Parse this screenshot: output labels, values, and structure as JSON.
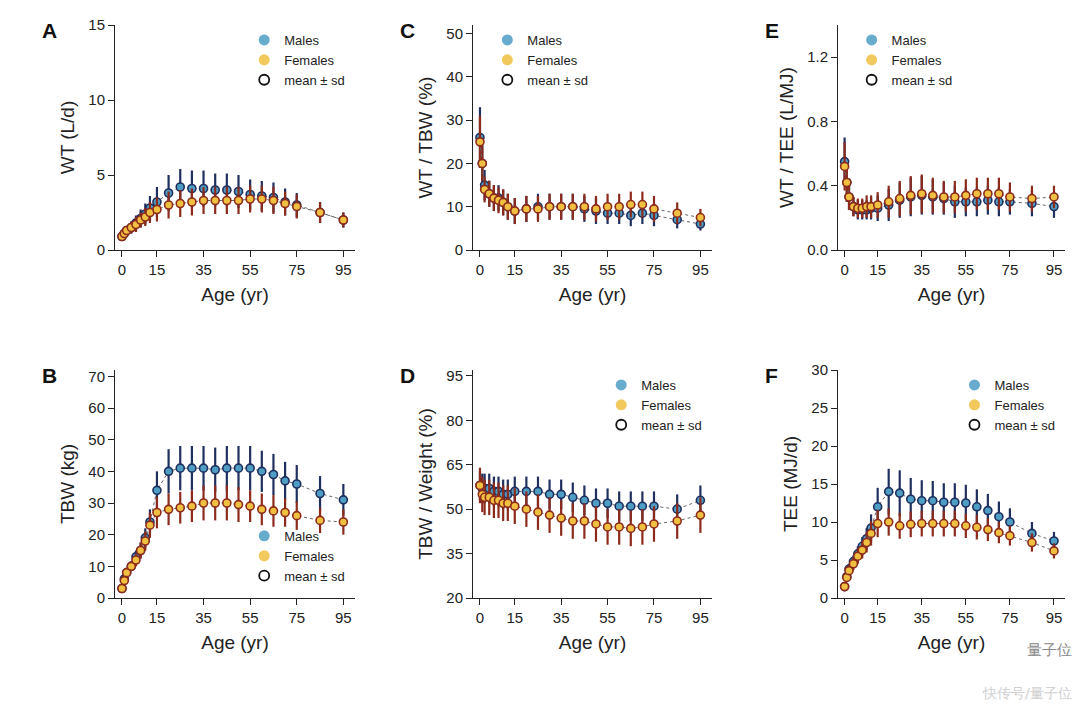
{
  "chart_data": [
    {
      "panel": "A",
      "type": "scatter",
      "x_label": "Age (yr)",
      "y_label": "WT (L/d)",
      "legend": "top right",
      "mean_label": "mean ± sd",
      "xlim": [
        -3,
        100
      ],
      "xticks": [
        0,
        15,
        35,
        55,
        75,
        95
      ],
      "ylim": [
        0,
        15
      ],
      "yticks": [
        0,
        5,
        10,
        15
      ],
      "x": [
        0,
        1,
        2,
        4,
        6,
        8,
        10,
        12,
        15,
        20,
        25,
        30,
        35,
        40,
        45,
        50,
        55,
        60,
        65,
        70,
        75,
        85,
        95
      ],
      "series": [
        {
          "name": "Males",
          "color": "#4e9ec4",
          "values": [
            0.9,
            1.1,
            1.3,
            1.5,
            1.8,
            2.1,
            2.4,
            2.8,
            3.2,
            3.8,
            4.2,
            4.1,
            4.1,
            4.0,
            4.0,
            3.9,
            3.7,
            3.6,
            3.5,
            3.2,
            3.0,
            2.5,
            2.0
          ],
          "sd": [
            0.2,
            0.3,
            0.3,
            0.4,
            0.5,
            0.6,
            0.7,
            0.8,
            1.0,
            1.2,
            1.2,
            1.2,
            1.2,
            1.1,
            1.1,
            1.1,
            1.0,
            1.0,
            1.0,
            0.9,
            0.8,
            0.7,
            0.5
          ]
        },
        {
          "name": "Females",
          "color": "#f0c040",
          "values": [
            0.9,
            1.1,
            1.3,
            1.5,
            1.7,
            2.0,
            2.2,
            2.5,
            2.7,
            3.0,
            3.1,
            3.2,
            3.3,
            3.3,
            3.3,
            3.3,
            3.4,
            3.4,
            3.3,
            3.1,
            2.9,
            2.5,
            2.0
          ],
          "sd": [
            0.2,
            0.3,
            0.3,
            0.4,
            0.5,
            0.5,
            0.6,
            0.7,
            0.8,
            0.9,
            0.9,
            0.9,
            0.9,
            0.9,
            0.9,
            0.9,
            0.9,
            0.9,
            0.9,
            0.8,
            0.8,
            0.7,
            0.5
          ]
        }
      ]
    },
    {
      "panel": "B",
      "type": "scatter",
      "x_label": "Age (yr)",
      "y_label": "TBW (kg)",
      "legend": "bottom right",
      "mean_label": "mean ± sd",
      "xlim": [
        -3,
        100
      ],
      "xticks": [
        0,
        15,
        35,
        55,
        75,
        95
      ],
      "ylim": [
        0,
        72
      ],
      "yticks": [
        0,
        10,
        20,
        30,
        40,
        50,
        60,
        70
      ],
      "x": [
        0,
        1,
        2,
        4,
        6,
        8,
        10,
        12,
        15,
        20,
        25,
        30,
        35,
        40,
        45,
        50,
        55,
        60,
        65,
        70,
        75,
        85,
        95
      ],
      "series": [
        {
          "name": "Males",
          "color": "#4e9ec4",
          "values": [
            3,
            6,
            8,
            10,
            13,
            15,
            19,
            24,
            34,
            40,
            41,
            41,
            41,
            40.5,
            41,
            41,
            41,
            40,
            39,
            37,
            36,
            33,
            31
          ],
          "sd": [
            1,
            1,
            1.5,
            1.5,
            2,
            2.5,
            3,
            4,
            6,
            7,
            7,
            7,
            7,
            7,
            7,
            7,
            7,
            6.5,
            6.5,
            6,
            6,
            5.5,
            5
          ]
        },
        {
          "name": "Females",
          "color": "#f0c040",
          "values": [
            3,
            5.5,
            8,
            10,
            12,
            15,
            18,
            23,
            27,
            28,
            28.5,
            29,
            30,
            30,
            30,
            29.5,
            29,
            28,
            27.5,
            27,
            26,
            24.5,
            24
          ],
          "sd": [
            1,
            1,
            1.5,
            1.5,
            2,
            2.5,
            3,
            4,
            5,
            5,
            5,
            5,
            5.5,
            5.5,
            5.5,
            5.5,
            5,
            5,
            5,
            4.5,
            4.5,
            4,
            4
          ]
        }
      ]
    },
    {
      "panel": "C",
      "type": "scatter",
      "x_label": "Age (yr)",
      "y_label": "WT / TBW (%)",
      "legend": "top left",
      "mean_label": "mean ± sd",
      "xlim": [
        -3,
        100
      ],
      "xticks": [
        0,
        15,
        35,
        55,
        75,
        95
      ],
      "ylim": [
        0,
        52
      ],
      "yticks": [
        0,
        10,
        20,
        30,
        40,
        50
      ],
      "x": [
        0,
        1,
        2,
        4,
        6,
        8,
        10,
        12,
        15,
        20,
        25,
        30,
        35,
        40,
        45,
        50,
        55,
        60,
        65,
        70,
        75,
        85,
        95
      ],
      "series": [
        {
          "name": "Males",
          "color": "#4e9ec4",
          "values": [
            26,
            20,
            15,
            13,
            12,
            12,
            11,
            10,
            9,
            9.5,
            10,
            10,
            10,
            10,
            9.5,
            9,
            8.5,
            8.5,
            8,
            8.5,
            8,
            7,
            6
          ],
          "sd": [
            7,
            5,
            3.5,
            3,
            3,
            3,
            3,
            3,
            3,
            3,
            3,
            3,
            3,
            3,
            3,
            3,
            2.5,
            2.5,
            2.5,
            2.5,
            2.5,
            2,
            1.5
          ]
        },
        {
          "name": "Females",
          "color": "#f0c040",
          "values": [
            25,
            20,
            14,
            13,
            12,
            11.5,
            11,
            10,
            9,
            9.5,
            9.5,
            10,
            10,
            10,
            10,
            9.5,
            10,
            10,
            10.5,
            10.5,
            9.5,
            8.5,
            7.5
          ],
          "sd": [
            6,
            4,
            3,
            3,
            3,
            3,
            3,
            3,
            3,
            3,
            3,
            3,
            3,
            3,
            3,
            3,
            3,
            3,
            3,
            3,
            3,
            2.5,
            2
          ]
        }
      ]
    },
    {
      "panel": "D",
      "type": "scatter",
      "x_label": "Age (yr)",
      "y_label": "TBW / Weight (%)",
      "legend": "top right",
      "mean_label": "mean ± sd",
      "xlim": [
        -3,
        100
      ],
      "xticks": [
        0,
        15,
        35,
        55,
        75,
        95
      ],
      "ylim": [
        20,
        97
      ],
      "yticks": [
        20,
        35,
        50,
        65,
        80,
        95
      ],
      "x": [
        0,
        1,
        2,
        4,
        6,
        8,
        10,
        12,
        15,
        20,
        25,
        30,
        35,
        40,
        45,
        50,
        55,
        60,
        65,
        70,
        75,
        85,
        95
      ],
      "series": [
        {
          "name": "Males",
          "color": "#4e9ec4",
          "values": [
            58,
            57,
            57,
            57,
            56,
            56,
            55,
            55,
            56,
            56,
            56,
            55,
            55,
            54,
            53,
            52,
            52,
            51,
            51,
            51,
            51,
            50,
            53
          ],
          "sd": [
            5,
            5,
            5,
            5,
            5,
            5,
            5,
            5,
            5,
            5,
            5,
            5,
            5,
            5,
            5,
            5,
            5,
            5,
            5,
            5,
            5,
            5,
            5
          ]
        },
        {
          "name": "Females",
          "color": "#f0c040",
          "values": [
            58,
            55,
            54,
            54,
            53,
            53,
            52,
            52,
            51,
            50,
            49,
            48,
            47,
            46,
            46,
            45,
            44,
            44,
            43.5,
            44,
            45,
            46,
            48
          ],
          "sd": [
            6,
            6,
            6,
            6,
            6,
            6,
            6,
            6,
            6,
            6,
            6,
            6,
            6,
            6,
            6,
            6,
            6,
            6,
            6,
            6,
            6,
            6,
            6
          ]
        }
      ]
    },
    {
      "panel": "E",
      "type": "scatter",
      "x_label": "Age (yr)",
      "y_label": "WT / TEE (L/MJ)",
      "legend": "top left",
      "mean_label": "mean ± sd",
      "xlim": [
        -3,
        100
      ],
      "xticks": [
        0,
        15,
        35,
        55,
        75,
        95
      ],
      "ylim": [
        0,
        1.4
      ],
      "yticks": [
        {
          "value": 0,
          "label": "0.0"
        },
        0.4,
        0.8,
        1.2
      ],
      "x": [
        0,
        1,
        2,
        4,
        6,
        8,
        10,
        12,
        15,
        20,
        25,
        30,
        35,
        40,
        45,
        50,
        55,
        60,
        65,
        70,
        75,
        85,
        95
      ],
      "series": [
        {
          "name": "Males",
          "color": "#4e9ec4",
          "values": [
            0.55,
            0.42,
            0.33,
            0.27,
            0.25,
            0.25,
            0.25,
            0.26,
            0.26,
            0.28,
            0.31,
            0.33,
            0.34,
            0.33,
            0.32,
            0.3,
            0.3,
            0.3,
            0.31,
            0.3,
            0.3,
            0.29,
            0.27
          ],
          "sd": [
            0.15,
            0.12,
            0.08,
            0.06,
            0.06,
            0.06,
            0.06,
            0.07,
            0.08,
            0.1,
            0.11,
            0.12,
            0.12,
            0.11,
            0.1,
            0.1,
            0.09,
            0.09,
            0.09,
            0.09,
            0.08,
            0.08,
            0.07
          ]
        },
        {
          "name": "Females",
          "color": "#f0c040",
          "values": [
            0.52,
            0.42,
            0.33,
            0.27,
            0.26,
            0.26,
            0.27,
            0.27,
            0.28,
            0.3,
            0.32,
            0.34,
            0.35,
            0.34,
            0.33,
            0.33,
            0.34,
            0.35,
            0.35,
            0.35,
            0.33,
            0.32,
            0.33
          ],
          "sd": [
            0.15,
            0.12,
            0.08,
            0.06,
            0.06,
            0.06,
            0.07,
            0.07,
            0.08,
            0.1,
            0.11,
            0.12,
            0.12,
            0.11,
            0.1,
            0.1,
            0.1,
            0.1,
            0.1,
            0.1,
            0.09,
            0.08,
            0.07
          ]
        }
      ]
    },
    {
      "panel": "F",
      "type": "scatter",
      "x_label": "Age (yr)",
      "y_label": "TEE (MJ/d)",
      "legend": "top right",
      "mean_label": "mean ± sd",
      "xlim": [
        -3,
        100
      ],
      "xticks": [
        0,
        15,
        35,
        55,
        75,
        95
      ],
      "ylim": [
        0,
        30
      ],
      "yticks": [
        0,
        5,
        10,
        15,
        20,
        25,
        30
      ],
      "x": [
        0,
        1,
        2,
        4,
        6,
        8,
        10,
        12,
        15,
        20,
        25,
        30,
        35,
        40,
        45,
        50,
        55,
        60,
        65,
        70,
        75,
        85,
        95
      ],
      "series": [
        {
          "name": "Males",
          "color": "#4e9ec4",
          "values": [
            1.5,
            2.8,
            3.8,
            4.8,
            5.8,
            6.8,
            7.8,
            9.2,
            12,
            14,
            13.8,
            13,
            12.8,
            12.8,
            12.6,
            12.6,
            12.5,
            12,
            11.5,
            10.7,
            10,
            8.5,
            7.5
          ],
          "sd": [
            0.4,
            0.6,
            0.7,
            0.8,
            1,
            1.2,
            1.4,
            1.8,
            2.5,
            3,
            3,
            2.8,
            2.7,
            2.6,
            2.5,
            2.5,
            2.4,
            2.3,
            2.2,
            2,
            1.8,
            1.5,
            1.2
          ]
        },
        {
          "name": "Females",
          "color": "#f0c040",
          "values": [
            1.5,
            2.7,
            3.6,
            4.5,
            5.5,
            6.3,
            7.3,
            8.5,
            9.8,
            10,
            9.5,
            9.7,
            9.8,
            9.8,
            9.8,
            9.8,
            9.5,
            9.3,
            9,
            8.6,
            8.2,
            7.3,
            6.2
          ],
          "sd": [
            0.4,
            0.6,
            0.7,
            0.8,
            1,
            1.1,
            1.3,
            1.6,
            1.8,
            1.8,
            1.7,
            1.7,
            1.7,
            1.7,
            1.7,
            1.7,
            1.6,
            1.6,
            1.5,
            1.4,
            1.3,
            1.2,
            1
          ]
        }
      ]
    }
  ],
  "watermark": [
    "量子位",
    "快传号/量子位"
  ]
}
